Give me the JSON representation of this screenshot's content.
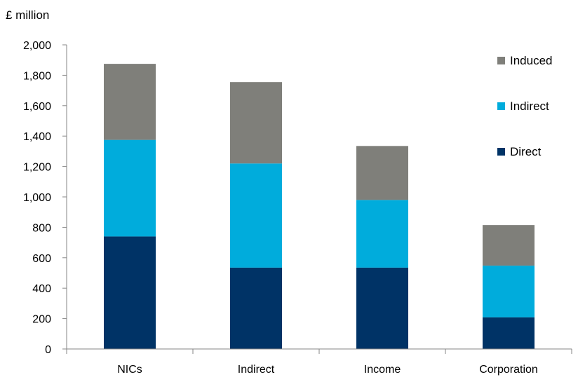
{
  "chart_data": {
    "type": "bar",
    "stacked": true,
    "unit_label": "£ million",
    "categories": [
      "NICs",
      "Indirect",
      "Income",
      "Corporation"
    ],
    "series": [
      {
        "name": "Direct",
        "values": [
          740,
          535,
          535,
          208
        ],
        "color": "#003366"
      },
      {
        "name": "Indirect",
        "values": [
          635,
          685,
          445,
          340
        ],
        "color": "#00acdc"
      },
      {
        "name": "Induced",
        "values": [
          500,
          535,
          355,
          267
        ],
        "color": "#7f7f7a"
      }
    ],
    "ylim": [
      0,
      2000
    ],
    "yticks": [
      "0",
      "200",
      "400",
      "600",
      "800",
      "1,000",
      "1,200",
      "1,400",
      "1,600",
      "1,800",
      "2,000"
    ],
    "legend_position": "right",
    "legend_order": [
      "Induced",
      "Indirect",
      "Direct"
    ],
    "grid": false
  }
}
